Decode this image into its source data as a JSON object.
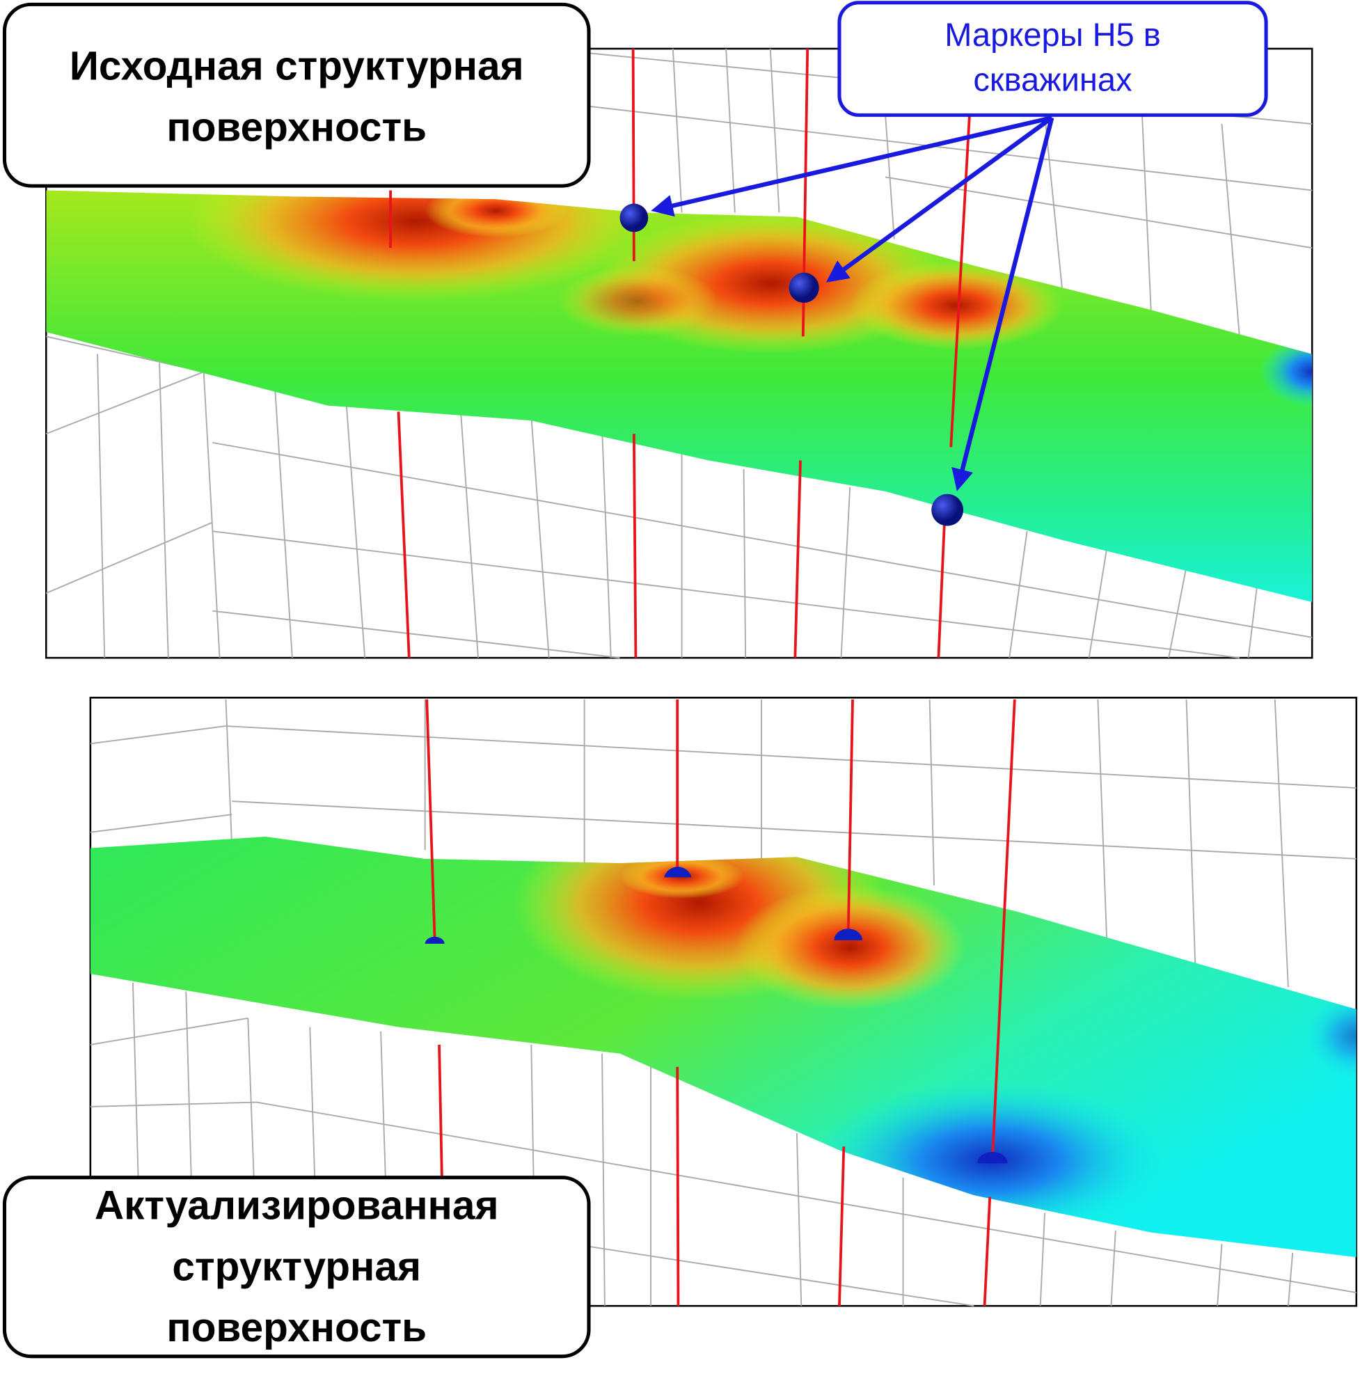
{
  "labels": {
    "original_surface": [
      "Исходная структурная",
      "поверхность"
    ],
    "markers": [
      "Маркеры Н5 в",
      "скважинах"
    ],
    "updated_surface": [
      "Актуализированная",
      "структурная",
      "поверхность"
    ]
  }
}
